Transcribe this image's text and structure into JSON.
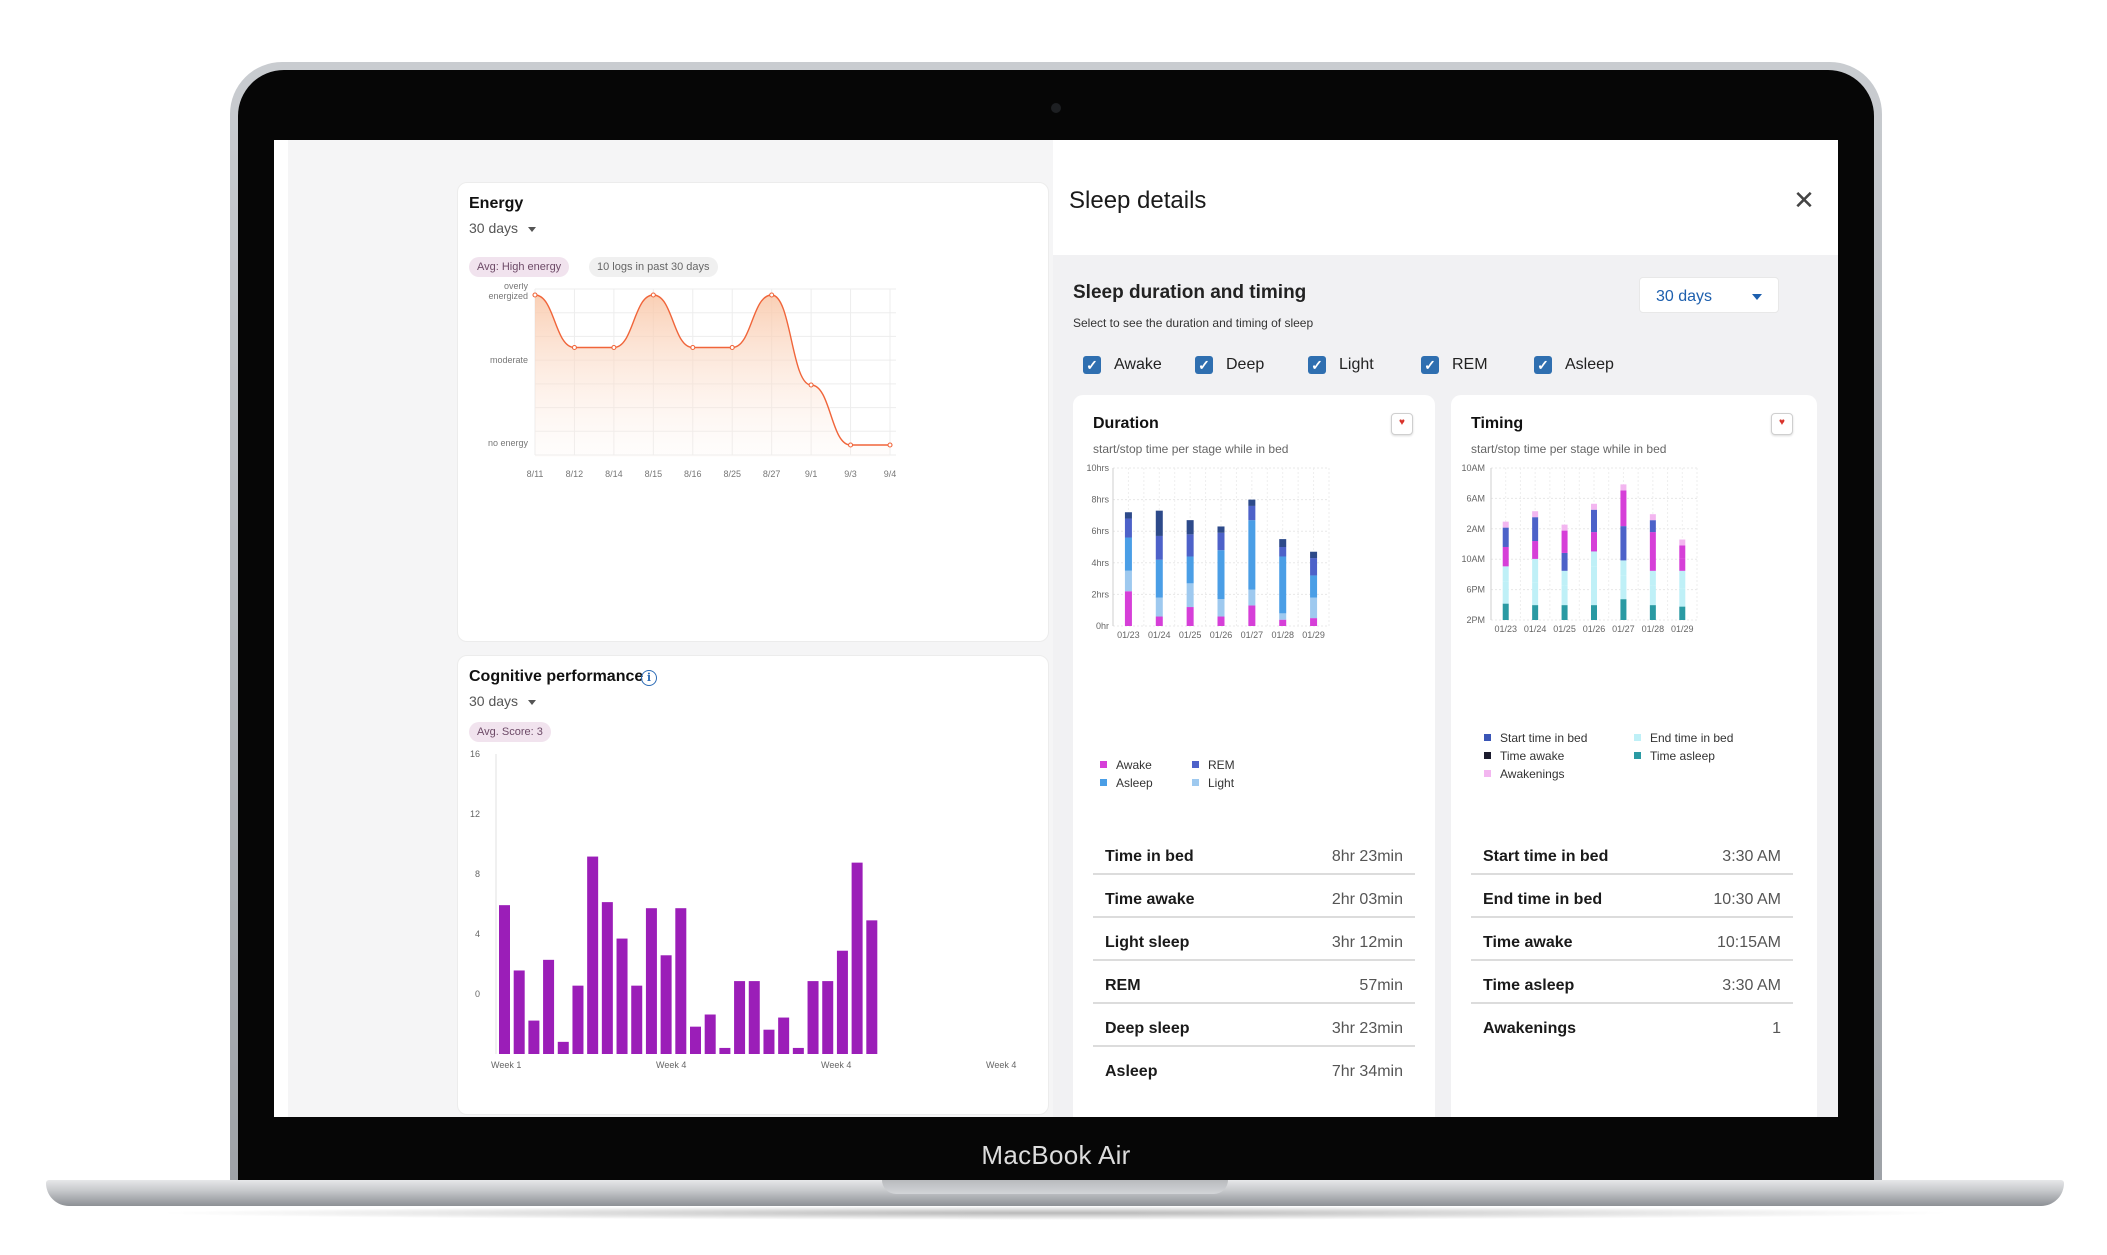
{
  "device": {
    "brand_label": "MacBook Air"
  },
  "energy": {
    "title": "Energy",
    "range": "30 days",
    "badge_avg": "Avg: High energy",
    "badge_logs": "10 logs in past 30 days",
    "chart_data": {
      "type": "area",
      "y_levels": [
        "overly energized",
        "moderate",
        "no energy"
      ],
      "x": [
        "8/11",
        "8/12",
        "8/14",
        "8/15",
        "8/16",
        "8/25",
        "8/27",
        "9/1",
        "9/3",
        "9/4"
      ],
      "values": [
        2,
        1.3,
        1.3,
        2,
        1.3,
        1.3,
        2,
        0.8,
        0,
        0
      ],
      "ylim": [
        0,
        2
      ],
      "grid": true,
      "color": "#f0653a"
    }
  },
  "cognitive": {
    "title": "Cognitive performance",
    "range": "30 days",
    "badge_avg": "Avg. Score: 3",
    "chart_data": {
      "type": "bar",
      "y_ticks": [
        "16",
        "12",
        "8",
        "4",
        "0"
      ],
      "ylim": [
        0,
        16
      ],
      "x_labels": [
        "Week 1",
        "Week 4",
        "Week 4",
        "Week 4"
      ],
      "values": [
        9.8,
        5.5,
        2.2,
        6.2,
        0.8,
        4.5,
        13,
        10,
        7.6,
        4.5,
        9.6,
        6.5,
        9.6,
        1.8,
        2.6,
        0.4,
        4.8,
        4.8,
        1.6,
        2.4,
        0.4,
        4.8,
        4.8,
        6.8,
        12.6,
        8.8
      ],
      "color": "#9b1eb8"
    }
  },
  "sleep": {
    "title": "Sleep details",
    "section_title": "Sleep duration and timing",
    "section_subtitle": "Select to see the duration and timing of sleep",
    "range": "30 days",
    "filters": [
      {
        "label": "Awake",
        "checked": true
      },
      {
        "label": "Deep",
        "checked": true
      },
      {
        "label": "Light",
        "checked": true
      },
      {
        "label": "REM",
        "checked": true
      },
      {
        "label": "Asleep",
        "checked": true
      }
    ],
    "colors": {
      "awake": "#d63fd8",
      "light": "#9ec9ef",
      "asleep": "#4a9ee6",
      "rem": "#4d62c9",
      "deep": "#2d4a8a",
      "start_in_bed": "#3a55b6",
      "end_in_bed": "#bff0f7",
      "time_awake": "#1c1c2e",
      "time_asleep": "#2a9aa3",
      "awakenings": "#f3b6f0"
    },
    "duration": {
      "title": "Duration",
      "subtitle": "start/stop time per stage while in bed",
      "chart_data": {
        "type": "bar",
        "stacked": true,
        "y_ticks": [
          "10hrs",
          "8hrs",
          "6hrs",
          "4hrs",
          "2hrs",
          "0hr"
        ],
        "ylim": [
          0,
          10
        ],
        "categories": [
          "01/23",
          "01/24",
          "01/25",
          "01/26",
          "01/27",
          "01/28",
          "01/29"
        ],
        "series": [
          {
            "name": "Awake",
            "values": [
              2.2,
              0.6,
              1.2,
              0.6,
              1.3,
              0.4,
              0.5
            ]
          },
          {
            "name": "Light",
            "values": [
              1.3,
              1.2,
              1.5,
              1.1,
              1.0,
              0.4,
              1.3
            ]
          },
          {
            "name": "Asleep",
            "values": [
              2.1,
              2.4,
              1.7,
              3.1,
              4.4,
              3.6,
              1.4
            ]
          },
          {
            "name": "REM",
            "values": [
              1.2,
              1.5,
              1.4,
              1.1,
              0.9,
              0.6,
              1.1
            ]
          },
          {
            "name": "Deep",
            "values": [
              0.4,
              1.6,
              0.9,
              0.4,
              0.4,
              0.5,
              0.4
            ]
          }
        ],
        "legend": [
          "Awake",
          "REM",
          "Asleep",
          "Light"
        ]
      },
      "stats": [
        {
          "label": "Time in bed",
          "value": "8hr 23min"
        },
        {
          "label": "Time awake",
          "value": "2hr 03min"
        },
        {
          "label": "Light sleep",
          "value": "3hr 12min"
        },
        {
          "label": "REM",
          "value": "57min"
        },
        {
          "label": "Deep sleep",
          "value": "3hr 23min"
        },
        {
          "label": "Asleep",
          "value": "7hr 34min"
        }
      ]
    },
    "timing": {
      "title": "Timing",
      "subtitle": "start/stop time per stage while in bed",
      "chart_data": {
        "type": "bar",
        "stacked": true,
        "y_ticks": [
          "10AM",
          "6AM",
          "2AM",
          "10AM",
          "6PM",
          "2PM"
        ],
        "categories": [
          "01/23",
          "01/24",
          "01/25",
          "01/26",
          "01/27",
          "01/28",
          "01/29"
        ],
        "series": [
          {
            "name": "Time asleep",
            "values": [
              1.1,
              1.0,
              1.0,
              1.0,
              1.4,
              1.0,
              0.9
            ]
          },
          {
            "name": "End time in bed",
            "values": [
              1.5,
              1.5,
              1.3,
              2.6,
              1.6,
              1.3,
              1.2
            ]
          },
          {
            "name": "Time awake",
            "values": [
              1.0,
              1.6,
              1.0,
              1.0,
              1.0,
              1.0,
              1.2
            ]
          },
          {
            "name": "Start time in bed",
            "values": [
              1.3,
              1.2,
              1.2,
              1.3,
              2.3,
              2.6,
              0.8
            ]
          },
          {
            "name": "Awakenings",
            "values": [
              1.3,
              1.6,
              1.5,
              1.5,
              2.4,
              0.8,
              0.9
            ]
          },
          {
            "name": "top-cap",
            "values": [
              0.4,
              0.4,
              0.4,
              0.4,
              0.4,
              0.4,
              0.4
            ]
          }
        ],
        "series_order_note": "bottom to top",
        "ymax": 10.2,
        "legend": [
          "Start time in bed",
          "End time in bed",
          "Time awake",
          "Time asleep",
          "Awakenings"
        ]
      },
      "stats": [
        {
          "label": "Start time in bed",
          "value": "3:30 AM"
        },
        {
          "label": "End time in bed",
          "value": "10:30 AM"
        },
        {
          "label": "Time awake",
          "value": "10:15AM"
        },
        {
          "label": "Time asleep",
          "value": "3:30 AM"
        },
        {
          "label": "Awakenings",
          "value": "1"
        }
      ]
    }
  }
}
